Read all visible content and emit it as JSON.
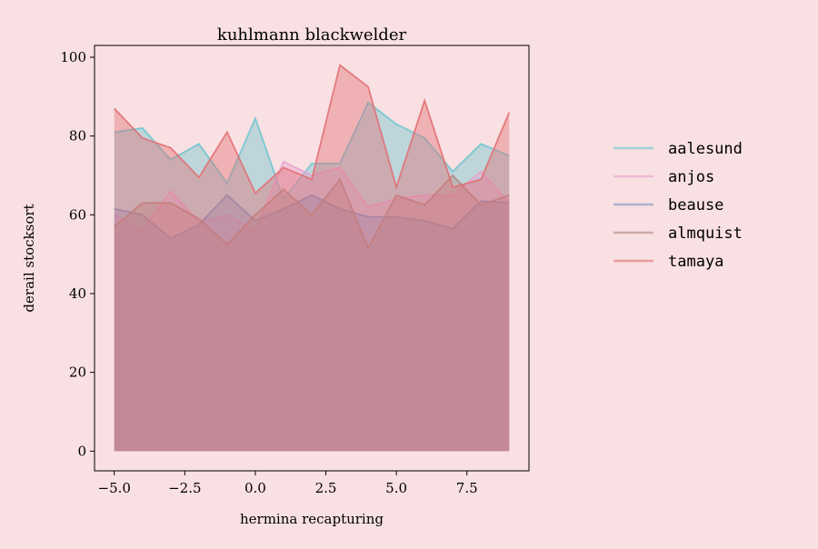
{
  "chart_data": {
    "type": "area",
    "title": "kuhlmann blackwelder",
    "xlabel": "hermina recapturing",
    "ylabel": "derail stocksort",
    "x": [
      -5,
      -4,
      -3,
      -2,
      -1,
      0,
      1,
      2,
      3,
      4,
      5,
      6,
      7,
      8,
      9
    ],
    "xlim": [
      -5.7,
      9.7
    ],
    "ylim": [
      -5,
      103
    ],
    "x_ticks": [
      -5.0,
      -2.5,
      0.0,
      2.5,
      5.0,
      7.5
    ],
    "x_tick_labels": [
      "−5.0",
      "−2.5",
      "0.0",
      "2.5",
      "5.0",
      "7.5"
    ],
    "y_ticks": [
      0,
      20,
      40,
      60,
      80,
      100
    ],
    "y_tick_labels": [
      "0",
      "20",
      "40",
      "60",
      "80",
      "100"
    ],
    "grid": false,
    "legend_position": "outside-right",
    "stacked": false,
    "fill_alpha": 0.4,
    "series": [
      {
        "name": "aalesund",
        "color": "#67c5d0",
        "values": [
          81,
          82,
          74,
          78,
          68,
          84.5,
          64,
          73,
          73,
          88.5,
          83,
          79.5,
          71,
          78,
          75
        ]
      },
      {
        "name": "anjos",
        "color": "#e8a0cf",
        "values": [
          60,
          56,
          66,
          58,
          60,
          56,
          73.5,
          70,
          72,
          62,
          64,
          65,
          65,
          71,
          63
        ]
      },
      {
        "name": "beause",
        "color": "#7d8fc0",
        "values": [
          61.5,
          60,
          54,
          57.5,
          65,
          58.5,
          61.5,
          65,
          61.5,
          59.5,
          59.5,
          58.5,
          56.5,
          63.5,
          63
        ]
      },
      {
        "name": "almquist",
        "color": "#b38683",
        "values": [
          57,
          63,
          63,
          59,
          52.5,
          60,
          66.5,
          60,
          69,
          51.5,
          65,
          62.5,
          70,
          62.5,
          65
        ]
      },
      {
        "name": "tamaya",
        "color": "#e06c70",
        "values": [
          87,
          79.5,
          77,
          69.5,
          81,
          65.5,
          72,
          69,
          98,
          92.5,
          67,
          89,
          67,
          69,
          86
        ]
      }
    ]
  }
}
